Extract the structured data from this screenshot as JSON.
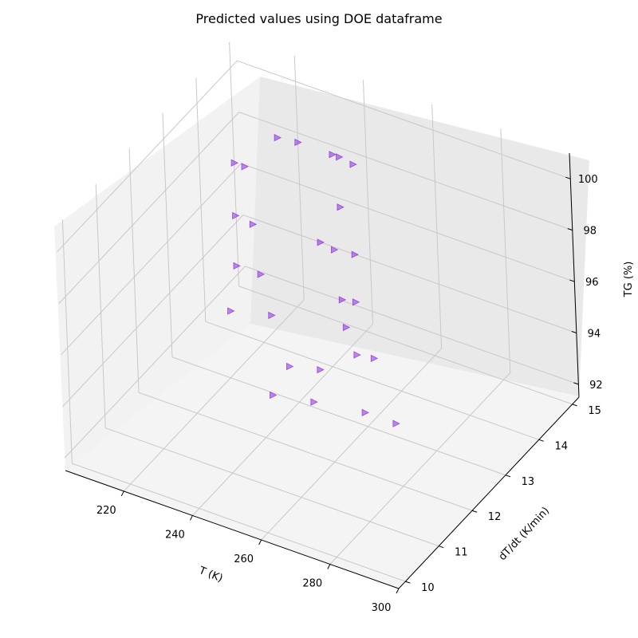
{
  "chart_data": {
    "type": "scatter3d",
    "title": "Predicted values using DOE dataframe",
    "xlabel": "T (K)",
    "ylabel": "dT/dt (K/min)",
    "zlabel": "TG (%)",
    "x_ticks": [
      "220",
      "240",
      "260",
      "280",
      "300"
    ],
    "y_ticks": [
      "10",
      "11",
      "12",
      "13",
      "14",
      "15"
    ],
    "z_ticks": [
      "92",
      "94",
      "96",
      "98",
      "100"
    ],
    "xlim": [
      203,
      300
    ],
    "ylim": [
      9.8,
      15.2
    ],
    "zlim": [
      91.5,
      101
    ],
    "grid": true,
    "marker": "triangle-right",
    "marker_color": "#8a2be2",
    "points": [
      {
        "x": 203,
        "y": 15,
        "z": 96.3
      },
      {
        "x": 206,
        "y": 15,
        "z": 96.3
      },
      {
        "x": 213,
        "y": 14,
        "z": 96.1
      },
      {
        "x": 218,
        "y": 14,
        "z": 96.0
      },
      {
        "x": 223,
        "y": 13,
        "z": 96.0
      },
      {
        "x": 230,
        "y": 13,
        "z": 96.0
      },
      {
        "x": 231,
        "y": 12,
        "z": 96.0
      },
      {
        "x": 243,
        "y": 12,
        "z": 96.4
      },
      {
        "x": 258,
        "y": 11,
        "z": 96.5
      },
      {
        "x": 267,
        "y": 11,
        "z": 96.8
      },
      {
        "x": 263,
        "y": 10,
        "z": 97.0
      },
      {
        "x": 275,
        "y": 10,
        "z": 97.3
      },
      {
        "x": 290,
        "y": 10,
        "z": 97.6
      },
      {
        "x": 299,
        "y": 10,
        "z": 97.6
      },
      {
        "x": 216,
        "y": 15,
        "z": 97.9
      },
      {
        "x": 222,
        "y": 15,
        "z": 98.0
      },
      {
        "x": 232,
        "y": 15,
        "z": 98.0
      },
      {
        "x": 234,
        "y": 15,
        "z": 98.0
      },
      {
        "x": 238,
        "y": 15,
        "z": 97.9
      },
      {
        "x": 244,
        "y": 14,
        "z": 97.9
      },
      {
        "x": 248,
        "y": 13,
        "z": 98.1
      },
      {
        "x": 252,
        "y": 13,
        "z": 98.0
      },
      {
        "x": 258,
        "y": 13,
        "z": 98.1
      },
      {
        "x": 264,
        "y": 12,
        "z": 98.0
      },
      {
        "x": 268,
        "y": 12,
        "z": 98.1
      },
      {
        "x": 270,
        "y": 11.5,
        "z": 97.9
      },
      {
        "x": 278,
        "y": 11,
        "z": 97.9
      },
      {
        "x": 283,
        "y": 11,
        "z": 98.0
      }
    ]
  }
}
